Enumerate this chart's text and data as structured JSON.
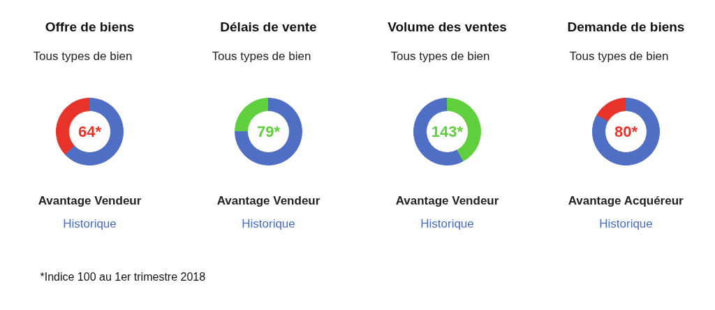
{
  "chart_data": [
    {
      "type": "donut",
      "title": "Offre de biens",
      "subtitle": "Tous types de bien",
      "categories": [
        null,
        null
      ],
      "values": [
        37,
        63
      ],
      "colors": [
        "#e8332a",
        "#4f6fc4"
      ],
      "annotations": [
        "64*",
        "Avantage Vendeur",
        "Historique",
        "*Indice 100 au 1er trimestre 2018"
      ]
    },
    {
      "type": "donut",
      "title": "Délais de vente",
      "subtitle": "Tous types de bien",
      "categories": [
        null,
        null
      ],
      "values": [
        25,
        75
      ],
      "colors": [
        "#5fcf3e",
        "#4f6fc4"
      ],
      "annotations": [
        "79*",
        "Avantage Vendeur",
        "Historique"
      ]
    },
    {
      "type": "donut",
      "title": "Volume des ventes",
      "subtitle": "Tous types de bien",
      "categories": [
        null,
        null
      ],
      "values": [
        58,
        42
      ],
      "colors": [
        "#4f6fc4",
        "#5fcf3e"
      ],
      "annotations": [
        "143*",
        "Avantage Vendeur",
        "Historique"
      ]
    },
    {
      "type": "donut",
      "title": "Demande de biens",
      "subtitle": "Tous types de bien",
      "categories": [
        null,
        null
      ],
      "values": [
        17,
        83
      ],
      "colors": [
        "#e8332a",
        "#4f6fc4"
      ],
      "annotations": [
        "80*",
        "Avantage Acquéreur",
        "Historique"
      ]
    }
  ]
}
